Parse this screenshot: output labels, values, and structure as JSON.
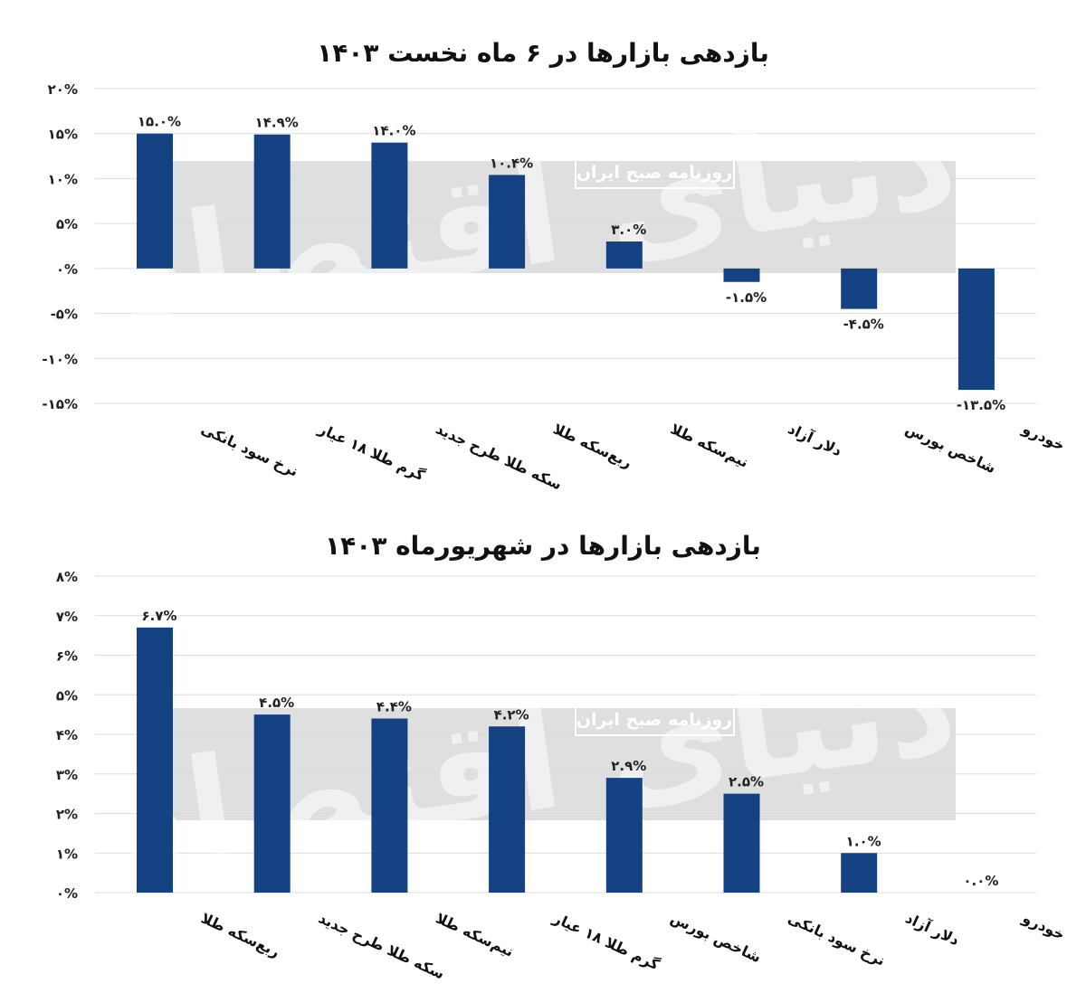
{
  "chart_data": [
    {
      "type": "bar",
      "title": "بازدهی بازارها در ۶ ماه نخست ۱۴۰۳",
      "categories": [
        "نرخ سود بانکی",
        "گرم طلا ۱۸ عیار",
        "سکه طلا طرح جدید",
        "ربع‌سکه طلا",
        "نیم‌سکه طلا",
        "دلار آزاد",
        "شاخص بورس",
        "خودرو"
      ],
      "values": [
        15.0,
        14.9,
        14.0,
        10.4,
        3.0,
        -1.5,
        -4.5,
        -13.5
      ],
      "value_labels": [
        "۱۵.۰%",
        "۱۴.۹%",
        "۱۴.۰%",
        "۱۰.۴%",
        "۳.۰%",
        "-۱.۵%",
        "-۴.۵%",
        "-۱۳.۵%"
      ],
      "yticks": [
        "۲۰%",
        "۱۵%",
        "۱۰%",
        "۵%",
        "۰%",
        "-۵%",
        "-۱۰%",
        "-۱۵%"
      ],
      "ylim": [
        -15,
        20
      ],
      "grid": true,
      "bar_color": "#0b3a7e"
    },
    {
      "type": "bar",
      "title": "بازدهی بازارها در شهریورماه ۱۴۰۳",
      "categories": [
        "ربع‌سکه طلا",
        "سکه طلا طرح جدید",
        "نیم‌سکه طلا",
        "گرم طلا ۱۸ عیار",
        "شاخص بورس",
        "نرخ سود بانکی",
        "دلار آزاد",
        "خودرو"
      ],
      "values": [
        6.7,
        4.5,
        4.4,
        4.2,
        2.9,
        2.5,
        1.0,
        0.0
      ],
      "value_labels": [
        "۶.۷%",
        "۴.۵%",
        "۴.۴%",
        "۴.۲%",
        "۲.۹%",
        "۲.۵%",
        "۱.۰%",
        "۰.۰%"
      ],
      "yticks": [
        "۸%",
        "۷%",
        "۶%",
        "۵%",
        "۴%",
        "۳%",
        "۲%",
        "۱%",
        "۰%"
      ],
      "ylim": [
        0,
        8
      ],
      "grid": true,
      "bar_color": "#0b3a7e"
    }
  ],
  "watermark": {
    "logo_text": "دنیای اقتصاد",
    "sub_text": "روزنامه صبح ایران"
  }
}
